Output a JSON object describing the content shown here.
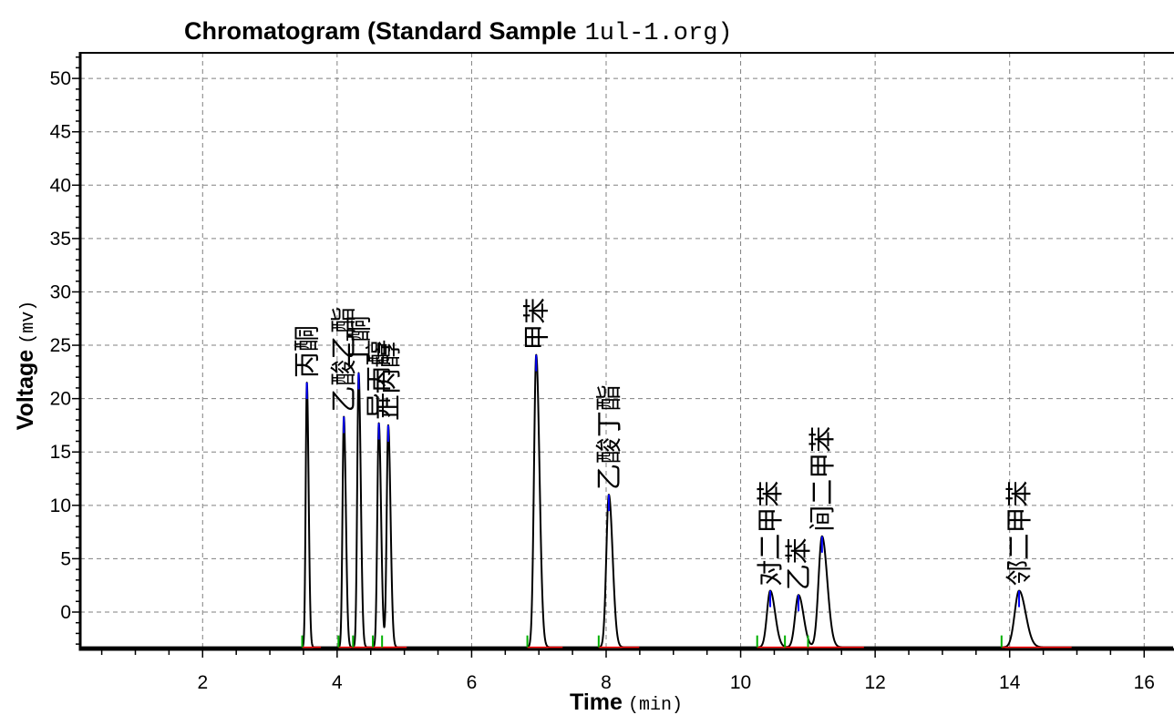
{
  "chart_data": {
    "type": "line",
    "title": "Chromatogram (Standard Sample",
    "title_file": "1ul-1.org)",
    "xlabel": "Time",
    "xlabel_unit": "(min)",
    "ylabel": "Voltage",
    "ylabel_unit": "(mv)",
    "xlim": [
      0.18,
      16.43
    ],
    "ylim": [
      -3.5,
      52.4
    ],
    "xticks": [
      2,
      4,
      6,
      8,
      10,
      12,
      14,
      16
    ],
    "yticks": [
      0,
      5,
      10,
      15,
      20,
      25,
      30,
      35,
      40,
      45,
      50
    ],
    "grid": true,
    "baseline": -3.3,
    "peaks": [
      {
        "label": "丙酮",
        "time": 3.55,
        "height": 21.5
      },
      {
        "label": "乙酸乙酯",
        "time": 4.1,
        "height": 18.3
      },
      {
        "label": "丁酮",
        "time": 4.32,
        "height": 22.4
      },
      {
        "label": "异丙醇",
        "time": 4.62,
        "height": 17.7
      },
      {
        "label": "正丙醇",
        "time": 4.76,
        "height": 17.5
      },
      {
        "label": "甲苯",
        "time": 6.96,
        "height": 24.1
      },
      {
        "label": "乙酸丁酯",
        "time": 8.04,
        "height": 11.0
      },
      {
        "label": "对二甲苯",
        "time": 10.44,
        "height": 2.0
      },
      {
        "label": "乙苯",
        "time": 10.86,
        "height": 1.6
      },
      {
        "label": "间二甲苯",
        "time": 11.21,
        "height": 7.1
      },
      {
        "label": "邻二甲苯",
        "time": 14.14,
        "height": 2.0
      }
    ]
  },
  "colors": {
    "trace": "#000000",
    "apex_marker": "#0000ff",
    "start_marker": "#00b000",
    "baseline_marker": "#ff0000",
    "grid": "#808080"
  }
}
